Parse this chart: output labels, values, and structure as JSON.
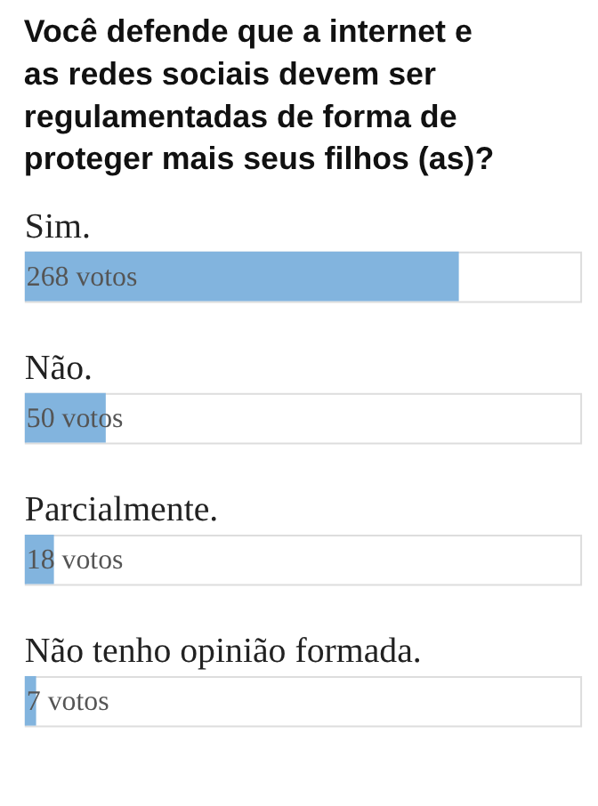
{
  "chart_data": {
    "type": "bar",
    "orientation": "horizontal",
    "title": "Você defende que a internet e as redes sociais devem ser regulamentadas de forma de proteger mais seus filhos (as)?",
    "categories": [
      "Sim.",
      "Não.",
      "Parcialmente.",
      "Não tenho opinião formada."
    ],
    "values": [
      268,
      50,
      18,
      7
    ],
    "value_labels": [
      "268 votos",
      "50 votos",
      "18 votos",
      "7 votos"
    ],
    "color": "#82b4de",
    "xlim": [
      0,
      343
    ],
    "tick_labels": false
  }
}
